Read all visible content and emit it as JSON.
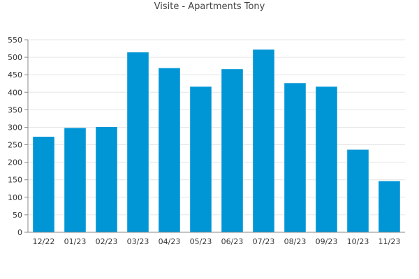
{
  "chart_data": {
    "type": "bar",
    "title": "Visite - Apartments Tony",
    "xlabel": "",
    "ylabel": "",
    "categories": [
      "12/22",
      "01/23",
      "02/23",
      "03/23",
      "04/23",
      "05/23",
      "06/23",
      "07/23",
      "08/23",
      "09/23",
      "10/23",
      "11/23"
    ],
    "values": [
      273,
      298,
      301,
      514,
      469,
      416,
      466,
      522,
      426,
      416,
      236,
      146
    ],
    "ylim": [
      0,
      550
    ],
    "yticks": [
      0,
      50,
      100,
      150,
      200,
      250,
      300,
      350,
      400,
      450,
      500,
      550
    ],
    "grid": true,
    "legend": "none",
    "bar_color": "#0096d6",
    "grid_color": "#e6e6e6",
    "axis_color": "#888888"
  }
}
